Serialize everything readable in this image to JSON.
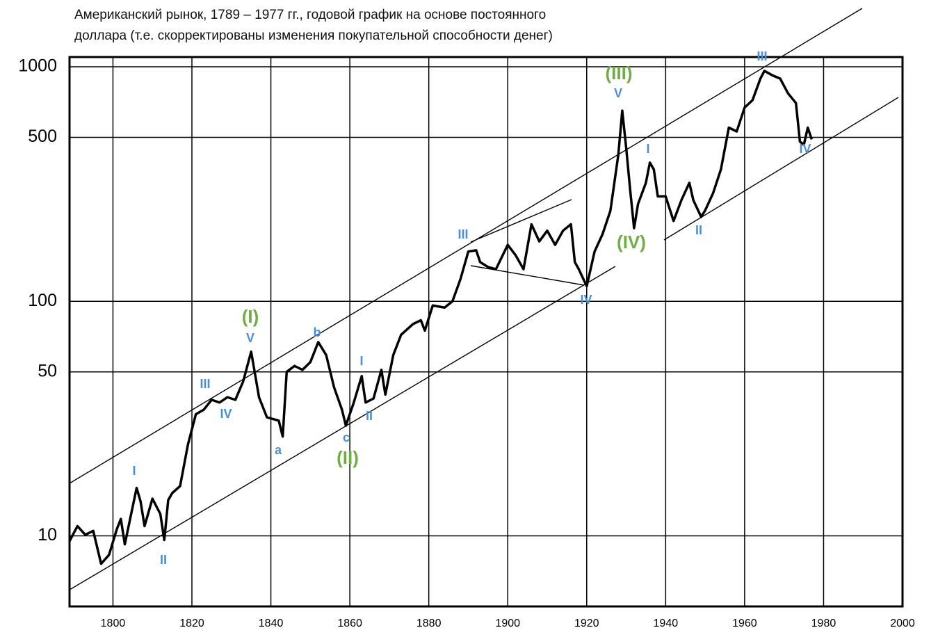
{
  "chart_data": {
    "type": "line",
    "title": [
      "Американский рынок, 1789 – 1977 гг., годовой график на основе постоянного",
      "доллара (т.е. скорректированы изменения покупательной способности денег)"
    ],
    "log_y": true,
    "grid": true,
    "color": "#000000",
    "xlim": [
      1789,
      2000
    ],
    "xticks": [
      1800,
      1820,
      1840,
      1860,
      1880,
      1900,
      1920,
      1940,
      1960,
      1980,
      2000
    ],
    "ylim": [
      5,
      1100
    ],
    "yticks": [
      10,
      50,
      100,
      500,
      1000
    ],
    "x": [
      1789,
      1791,
      1793,
      1795,
      1797,
      1799,
      1801,
      1802,
      1803,
      1805,
      1806,
      1807,
      1808,
      1810,
      1812,
      1813,
      1814,
      1815,
      1817,
      1819,
      1821,
      1823,
      1825,
      1827,
      1829,
      1831,
      1833,
      1835,
      1837,
      1839,
      1842,
      1843,
      1844,
      1846,
      1848,
      1850,
      1852,
      1854,
      1856,
      1858,
      1859,
      1861,
      1863,
      1864,
      1866,
      1868,
      1869,
      1871,
      1873,
      1876,
      1878,
      1879,
      1881,
      1884,
      1886,
      1888,
      1890,
      1892,
      1893,
      1895,
      1897,
      1900,
      1902,
      1904,
      1906,
      1908,
      1910,
      1912,
      1914,
      1916,
      1917,
      1918,
      1920,
      1922,
      1924,
      1926,
      1928,
      1929,
      1930,
      1931,
      1932,
      1933,
      1935,
      1936,
      1937,
      1938,
      1940,
      1942,
      1944,
      1946,
      1947,
      1949,
      1950,
      1952,
      1954,
      1956,
      1958,
      1960,
      1962,
      1964,
      1965,
      1967,
      1969,
      1971,
      1973,
      1974,
      1975,
      1976,
      1977
    ],
    "values": [
      9.5,
      11,
      10.1,
      10.5,
      7.6,
      8.3,
      10.7,
      11.8,
      9.2,
      13.3,
      16,
      14,
      11,
      14.4,
      12.4,
      9.6,
      14.2,
      15.2,
      16.3,
      24.5,
      33,
      34.5,
      38,
      37,
      39,
      38,
      45.6,
      61,
      39,
      32,
      31,
      26.5,
      50,
      53,
      51,
      55,
      67,
      59,
      43,
      34.5,
      29.5,
      37,
      48,
      37,
      38.5,
      51,
      40,
      59,
      72,
      80,
      83,
      75,
      96,
      94,
      100,
      124,
      163,
      165,
      147,
      140,
      137,
      174,
      157,
      137,
      213,
      180,
      200,
      174,
      200,
      213,
      147,
      137,
      116,
      163,
      193,
      243,
      420,
      650,
      450,
      300,
      205,
      260,
      320,
      390,
      365,
      280,
      280,
      220,
      270,
      320,
      270,
      229,
      244,
      289,
      365,
      550,
      530,
      670,
      720,
      890,
      960,
      920,
      890,
      770,
      700,
      480,
      465,
      550,
      490
    ],
    "annotations": [
      {
        "text": "I",
        "color": "#4a8fd4"
      },
      {
        "text": "II",
        "color": "#4a8fd4"
      },
      {
        "text": "III",
        "color": "#4a8fd4"
      },
      {
        "text": "IV",
        "color": "#4a8fd4"
      },
      {
        "text": "V",
        "color": "#4a8fd4"
      },
      {
        "text": "a",
        "color": "#4a8fd4"
      },
      {
        "text": "b",
        "color": "#4a8fd4"
      },
      {
        "text": "c",
        "color": "#4a8fd4"
      },
      {
        "text": "I",
        "color": "#4a8fd4"
      },
      {
        "text": "II",
        "color": "#4a8fd4"
      },
      {
        "text": "III",
        "color": "#4a8fd4"
      },
      {
        "text": "IV",
        "color": "#4a8fd4"
      },
      {
        "text": "V",
        "color": "#4a8fd4"
      },
      {
        "text": "I",
        "color": "#4a8fd4"
      },
      {
        "text": "II",
        "color": "#4a8fd4"
      },
      {
        "text": "III",
        "color": "#4a8fd4"
      },
      {
        "text": "IV",
        "color": "#4a8fd4"
      },
      {
        "text": "(I)",
        "color": "#70ad47"
      },
      {
        "text": "(II)",
        "color": "#70ad47"
      },
      {
        "text": "(III)",
        "color": "#70ad47"
      },
      {
        "text": "(IV)",
        "color": "#70ad47"
      }
    ]
  }
}
